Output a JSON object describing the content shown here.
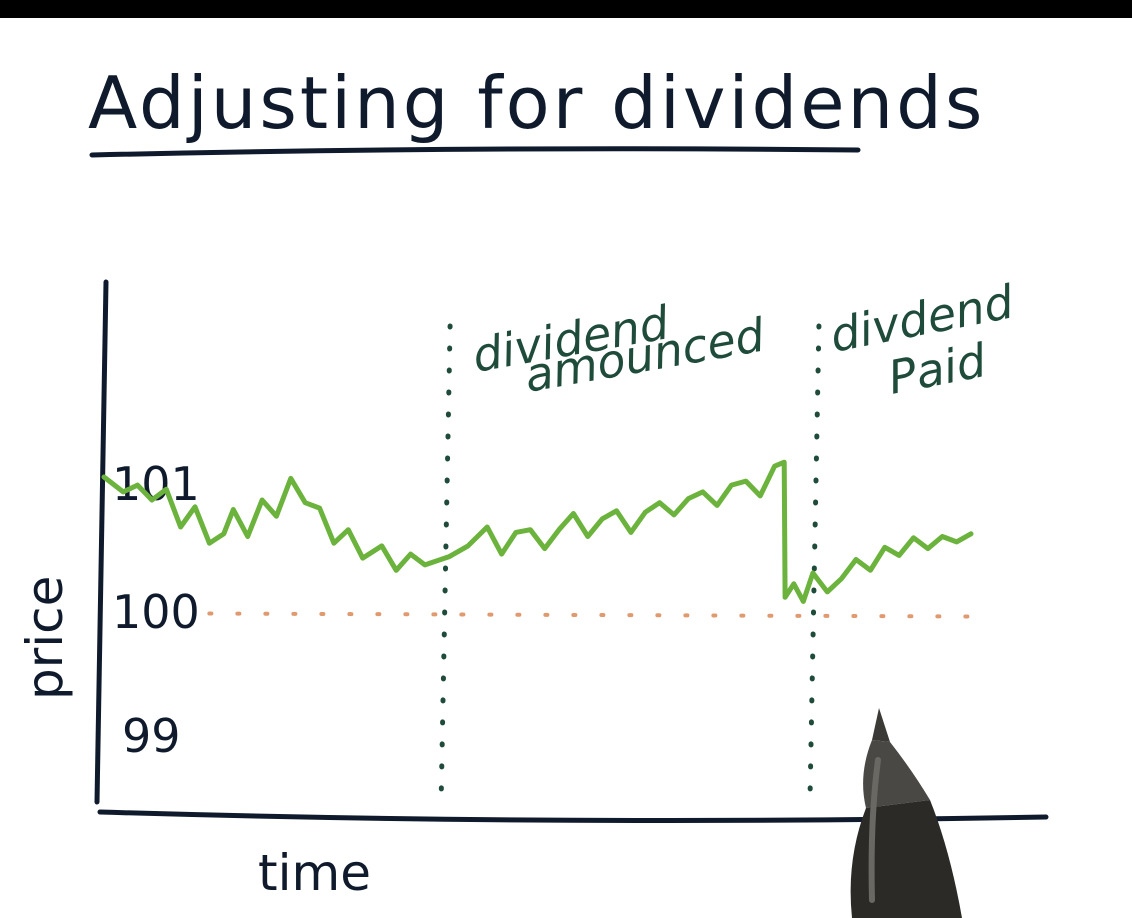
{
  "colors": {
    "background": "#ffffff",
    "top_bar": "#000000",
    "ink": "#0f1b2d",
    "price_line": "#6bb33c",
    "reference_dots": "#e09a70",
    "event_lines": "#1f4b3a",
    "pen_body": "#2b2a27",
    "pen_tip": "#4a4844"
  },
  "chart_data": {
    "type": "line",
    "title": "Adjusting for dividends",
    "xlabel": "time",
    "ylabel": "price",
    "ylim": [
      98.6,
      102.3
    ],
    "xlim": [
      0,
      100
    ],
    "y_ticks": [
      {
        "value": 101,
        "label": "101"
      },
      {
        "value": 100,
        "label": "100"
      },
      {
        "value": 99,
        "label": "99"
      }
    ],
    "grid": false,
    "series": [
      {
        "values": [
          [
            0,
            100.99
          ],
          [
            2,
            100.88
          ],
          [
            3.5,
            100.93
          ],
          [
            5,
            100.82
          ],
          [
            6.5,
            100.9
          ],
          [
            8,
            100.62
          ],
          [
            9.5,
            100.77
          ],
          [
            11,
            100.5
          ],
          [
            12.5,
            100.57
          ],
          [
            13.5,
            100.75
          ],
          [
            15,
            100.55
          ],
          [
            16.5,
            100.82
          ],
          [
            18,
            100.7
          ],
          [
            19.5,
            100.98
          ],
          [
            21,
            100.8
          ],
          [
            22.5,
            100.76
          ],
          [
            24,
            100.5
          ],
          [
            25.5,
            100.6
          ],
          [
            27,
            100.39
          ],
          [
            29,
            100.48
          ],
          [
            30.5,
            100.3
          ],
          [
            32,
            100.42
          ],
          [
            33.5,
            100.34
          ],
          [
            36,
            100.4
          ],
          [
            38,
            100.48
          ],
          [
            40,
            100.62
          ],
          [
            41.5,
            100.42
          ],
          [
            43,
            100.58
          ],
          [
            44.5,
            100.6
          ],
          [
            46,
            100.46
          ],
          [
            47.5,
            100.6
          ],
          [
            49,
            100.72
          ],
          [
            50.5,
            100.55
          ],
          [
            52,
            100.68
          ],
          [
            53.5,
            100.74
          ],
          [
            55,
            100.58
          ],
          [
            56.5,
            100.73
          ],
          [
            58,
            100.8
          ],
          [
            59.5,
            100.71
          ],
          [
            61,
            100.83
          ],
          [
            62.5,
            100.88
          ],
          [
            64,
            100.78
          ],
          [
            65.5,
            100.93
          ],
          [
            67,
            100.96
          ],
          [
            68.5,
            100.85
          ],
          [
            70,
            101.07
          ],
          [
            71,
            101.1
          ],
          [
            71.1,
            100.1
          ],
          [
            72,
            100.2
          ],
          [
            73,
            100.07
          ],
          [
            74,
            100.28
          ],
          [
            75.5,
            100.14
          ],
          [
            77,
            100.24
          ],
          [
            78.5,
            100.38
          ],
          [
            80,
            100.3
          ],
          [
            81.5,
            100.47
          ],
          [
            83,
            100.41
          ],
          [
            84.5,
            100.54
          ],
          [
            86,
            100.46
          ],
          [
            87.5,
            100.55
          ],
          [
            89,
            100.51
          ],
          [
            90.5,
            100.57
          ]
        ]
      }
    ],
    "reference_line": {
      "y": 99.98,
      "style": "dotted",
      "x_start": 11,
      "x_end": 91
    },
    "event_lines": [
      {
        "x": 35.5,
        "style": "dotted",
        "label_lines": [
          "dividend",
          "amounced"
        ]
      },
      {
        "x": 74,
        "style": "dotted",
        "label_lines": [
          "divdend",
          "Paid"
        ]
      }
    ]
  }
}
